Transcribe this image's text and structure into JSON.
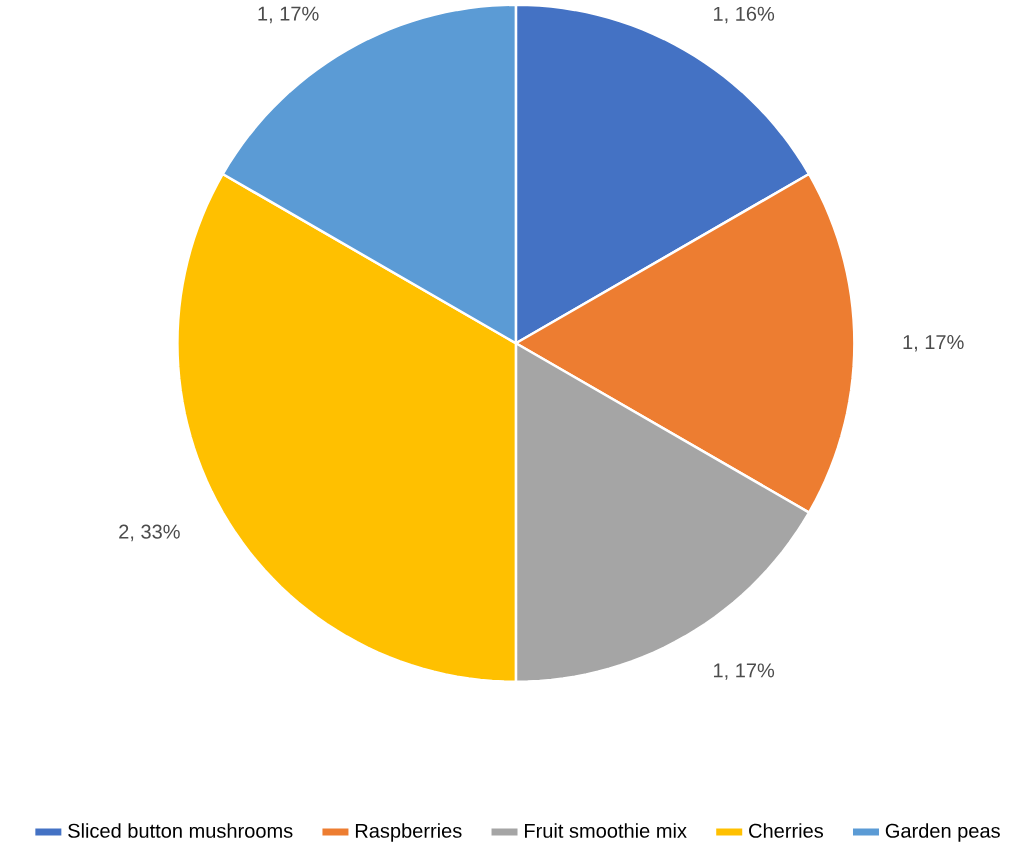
{
  "chart_data": {
    "type": "pie",
    "categories": [
      "Sliced button mushrooms",
      "Raspberries",
      "Fruit smoothie mix",
      "Cherries",
      "Garden peas"
    ],
    "values": [
      1,
      1,
      1,
      2,
      1
    ],
    "value_labels": [
      "1, 16%",
      "1, 17%",
      "1, 17%",
      "2, 33%",
      "1, 17%"
    ],
    "colors": [
      "#4472c4",
      "#ed7d31",
      "#a5a5a5",
      "#ffc000",
      "#5b9bd5"
    ],
    "legend": "bottom"
  }
}
